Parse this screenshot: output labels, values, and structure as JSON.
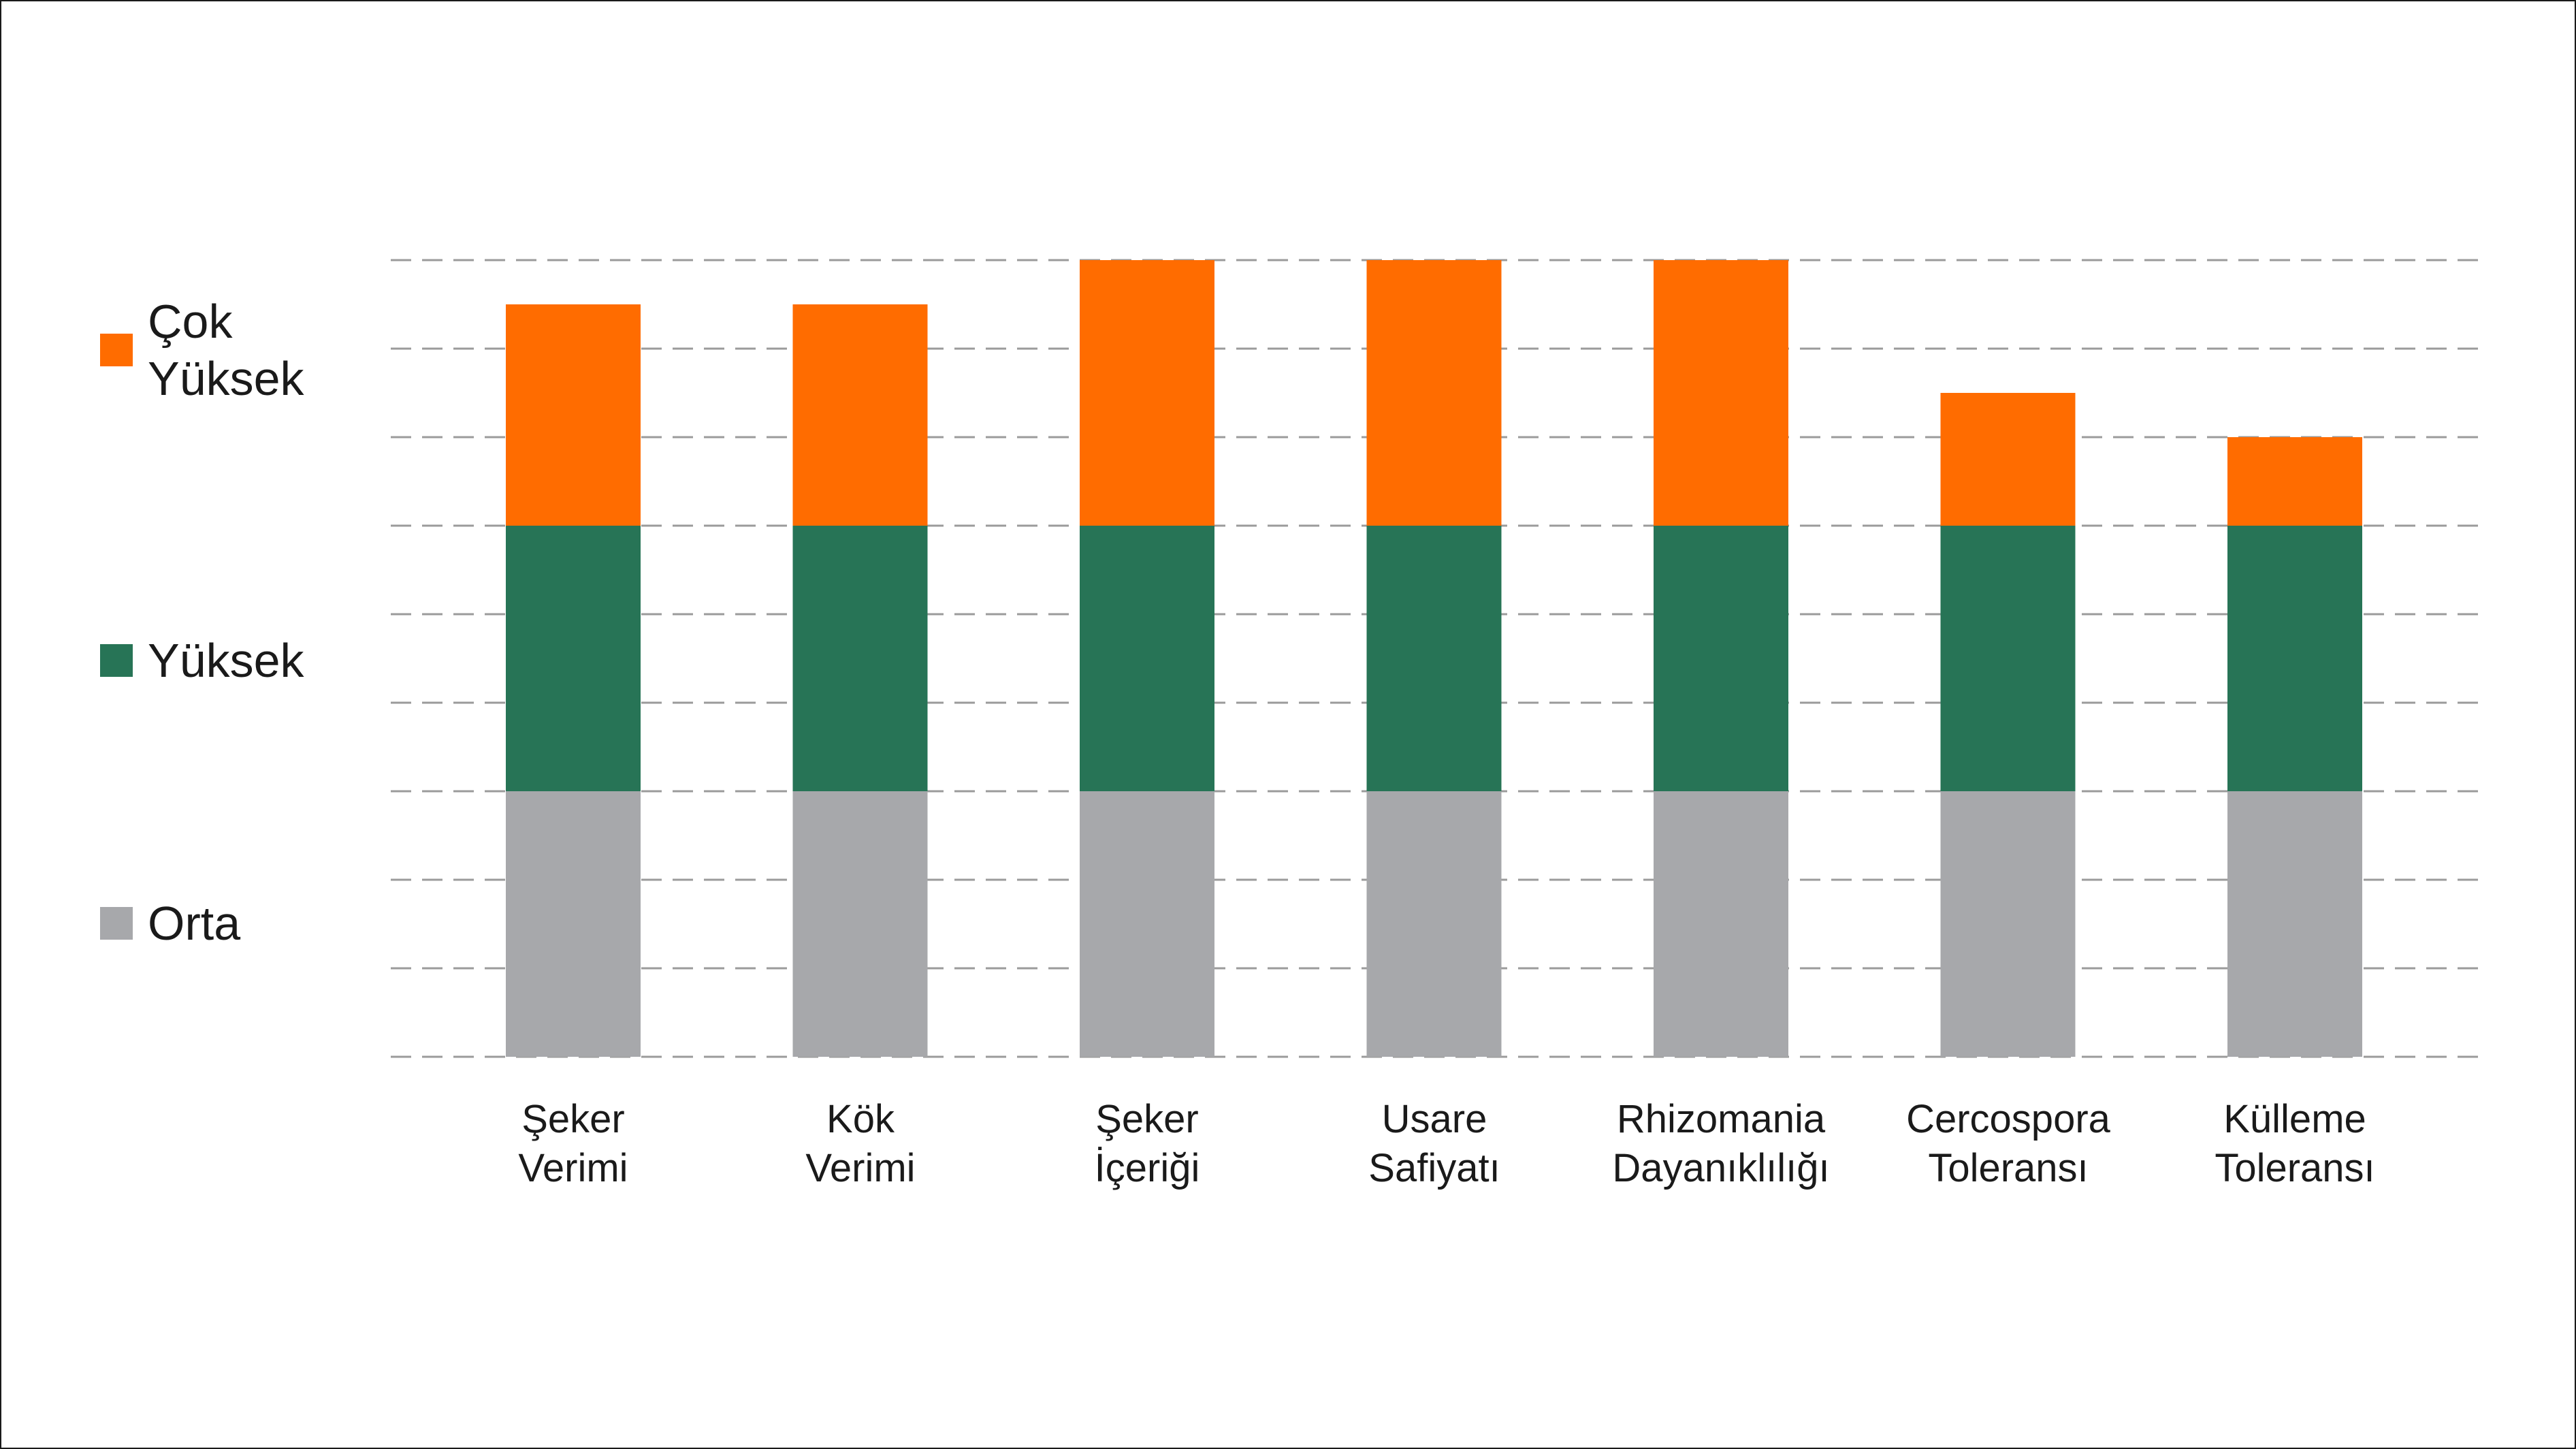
{
  "chart_data": {
    "type": "bar",
    "stacked": true,
    "categories": [
      "Şeker\nVerimi",
      "Kök\nVerimi",
      "Şeker\nİçeriği",
      "Usare\nSafiyatı",
      "Rhizomania\nDayanıklılığı",
      "Cercospora\nToleransı",
      "Külleme\nToleransı"
    ],
    "series": [
      {
        "name": "Orta",
        "color": "#a7a8ab",
        "values": [
          3,
          3,
          3,
          3,
          3,
          3,
          3
        ]
      },
      {
        "name": "Yüksek",
        "color": "#277456",
        "values": [
          3,
          3,
          3,
          3,
          3,
          3,
          3
        ]
      },
      {
        "name": "Çok\nYüksek",
        "color": "#ff6c00",
        "values": [
          2.5,
          2.5,
          3,
          3,
          3,
          1.5,
          1
        ]
      }
    ],
    "ylim": [
      0,
      9
    ],
    "grid": true,
    "grid_style": "dashed",
    "legend_position": "left",
    "title": "",
    "xlabel": "",
    "ylabel": ""
  }
}
